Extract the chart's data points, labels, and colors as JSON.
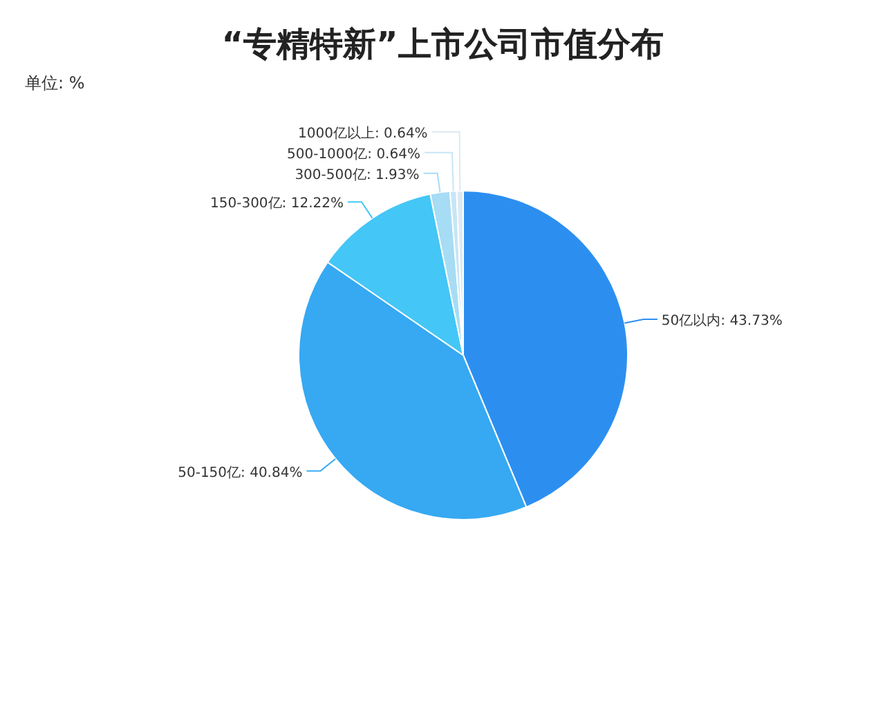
{
  "chart_data": {
    "type": "pie",
    "title": "“专精特新”上市公司市值分布",
    "annotations": [
      "单位: %"
    ],
    "categories": [
      "50亿以内",
      "50-150亿",
      "150-300亿",
      "300-500亿",
      "500-1000亿",
      "1000亿以上"
    ],
    "values": [
      43.73,
      40.84,
      12.22,
      1.93,
      0.64,
      0.64
    ],
    "value_labels": [
      "43.73%",
      "40.84%",
      "12.22%",
      "1.93%",
      "0.64%",
      "0.64%"
    ],
    "colors": [
      "#2c8ff0",
      "#36a9f2",
      "#44c6f6",
      "#a6dcf4",
      "#c6e6f6",
      "#dbe9f2"
    ]
  }
}
